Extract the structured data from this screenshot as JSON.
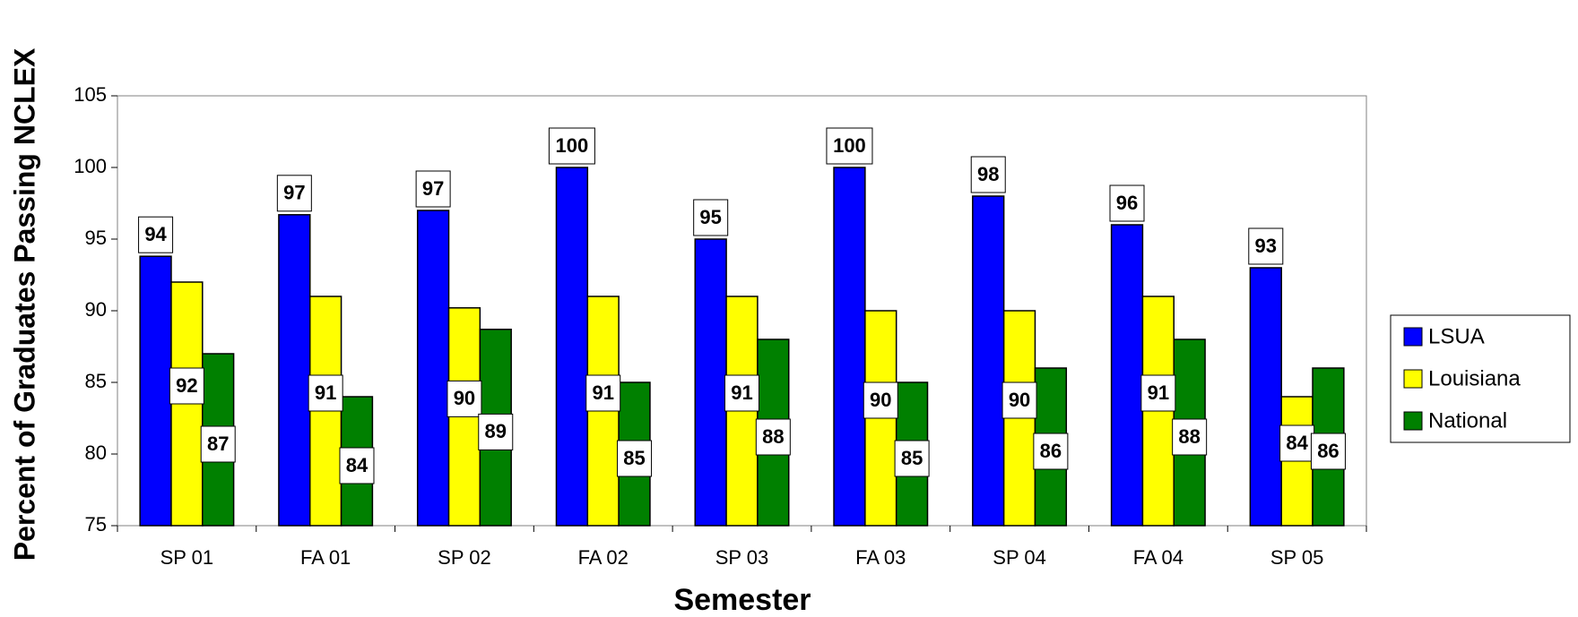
{
  "chart_data": {
    "type": "bar",
    "y_label": "Percent of Graduates Passing NCLEX",
    "x_label": "Semester",
    "categories": [
      "SP 01",
      "FA 01",
      "SP 02",
      "FA 02",
      "SP 03",
      "FA 03",
      "SP 04",
      "FA 04",
      "SP 05"
    ],
    "series": [
      {
        "name": "LSUA",
        "color": "#0000ff",
        "values": [
          93.8,
          96.7,
          97,
          100,
          95,
          100,
          98,
          96,
          93
        ],
        "value_labels": [
          "94",
          "97",
          "97",
          "100",
          "95",
          "100",
          "98",
          "96",
          "93"
        ]
      },
      {
        "name": "Louisiana",
        "color": "#ffff00",
        "values": [
          92,
          91,
          90.2,
          91,
          91,
          90,
          90,
          91,
          84
        ],
        "value_labels": [
          "92",
          "91",
          "90",
          "91",
          "91",
          "90",
          "90",
          "91",
          "84"
        ]
      },
      {
        "name": "National",
        "color": "#008000",
        "values": [
          87,
          84,
          88.7,
          85,
          88,
          85,
          86,
          88,
          86
        ],
        "value_labels": [
          "87",
          "84",
          "89",
          "85",
          "88",
          "85",
          "86",
          "88",
          "86"
        ]
      }
    ],
    "ylim": [
      75,
      105
    ],
    "yticks": [
      75,
      80,
      85,
      90,
      95,
      100,
      105
    ],
    "grid": false,
    "legend": "right"
  }
}
